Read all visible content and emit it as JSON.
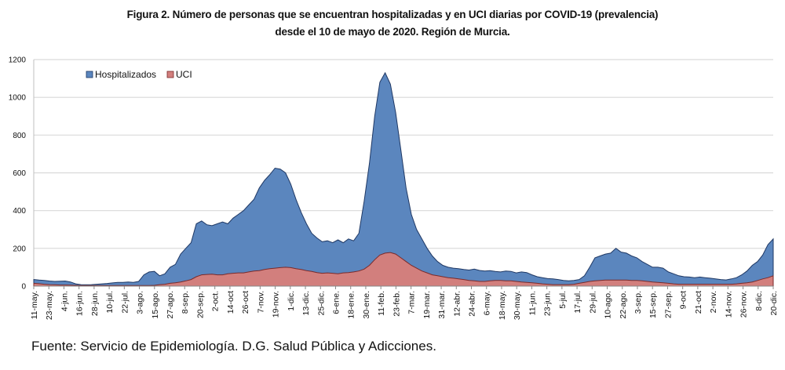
{
  "chart_data": {
    "type": "area",
    "stacked": false,
    "title": "Figura 2. Número de personas que se encuentran hospitalizadas y en UCI diarias por COVID-19 (prevalencia)",
    "subtitle": "desde el 10 de mayo de 2020. Región de Murcia.",
    "xlabel": "",
    "ylabel": "",
    "ylim": [
      0,
      1200
    ],
    "yticks": [
      0,
      200,
      400,
      600,
      800,
      1000,
      1200
    ],
    "grid": true,
    "legend": {
      "placement": "top-left",
      "entries": [
        "Hospitalizados",
        "UCI"
      ]
    },
    "x_tick_labels": [
      "11-may.",
      "23-may.",
      "4-jun.",
      "16-jun.",
      "28-jun.",
      "10-jul.",
      "22-jul.",
      "3-ago.",
      "15-ago.",
      "27-ago.",
      "8-sep.",
      "20-sep.",
      "2-oct.",
      "14-oct",
      "26-oct",
      "7-nov.",
      "19-nov.",
      "1-dic.",
      "13-dic.",
      "25-dic.",
      "6-ene.",
      "18-ene.",
      "30-ene.",
      "11-feb.",
      "23-feb.",
      "7-mar.",
      "19-mar.",
      "31-mar.",
      "12-abr.",
      "24-abr.",
      "6-may.",
      "18-may.",
      "30-may.",
      "11-jun.",
      "23-jun.",
      "5-jul.",
      "17-jul.",
      "29-jul.",
      "10-ago.",
      "22-ago.",
      "3-sep.",
      "15-sep.",
      "27-sep.",
      "9-oct",
      "21-oct",
      "2-nov.",
      "14-nov.",
      "26-nov.",
      "8-dic.",
      "20-dic."
    ],
    "x_step_days": 6,
    "series": [
      {
        "name": "Hospitalizados",
        "color": "#5b86be",
        "line_color": "#1f3864",
        "values": [
          35,
          32,
          30,
          27,
          25,
          26,
          27,
          22,
          12,
          8,
          7,
          8,
          10,
          12,
          14,
          17,
          20,
          20,
          22,
          20,
          25,
          60,
          75,
          78,
          55,
          65,
          100,
          115,
          170,
          200,
          230,
          330,
          345,
          325,
          320,
          330,
          340,
          330,
          360,
          380,
          400,
          430,
          460,
          520,
          560,
          590,
          625,
          620,
          600,
          540,
          460,
          390,
          330,
          280,
          255,
          235,
          240,
          230,
          245,
          230,
          250,
          240,
          280,
          450,
          650,
          900,
          1080,
          1130,
          1070,
          920,
          720,
          520,
          380,
          300,
          250,
          200,
          160,
          130,
          110,
          100,
          95,
          92,
          88,
          85,
          90,
          83,
          80,
          82,
          78,
          75,
          80,
          78,
          70,
          75,
          72,
          60,
          50,
          45,
          40,
          38,
          35,
          30,
          28,
          30,
          35,
          55,
          100,
          150,
          160,
          170,
          175,
          200,
          180,
          175,
          160,
          150,
          130,
          115,
          100,
          100,
          95,
          75,
          65,
          55,
          50,
          48,
          45,
          48,
          45,
          42,
          38,
          35,
          33,
          38,
          45,
          60,
          80,
          110,
          130,
          165,
          220,
          250
        ]
      },
      {
        "name": "UCI",
        "color": "#d27f7d",
        "line_color": "#7a2a2a",
        "values": [
          15,
          13,
          10,
          8,
          7,
          6,
          6,
          5,
          4,
          3,
          3,
          3,
          3,
          3,
          3,
          3,
          3,
          3,
          3,
          3,
          3,
          3,
          3,
          4,
          8,
          10,
          15,
          18,
          22,
          28,
          35,
          50,
          60,
          62,
          63,
          60,
          60,
          65,
          68,
          70,
          70,
          75,
          80,
          82,
          88,
          92,
          95,
          98,
          100,
          98,
          92,
          88,
          82,
          78,
          72,
          68,
          70,
          68,
          65,
          70,
          72,
          75,
          80,
          90,
          110,
          140,
          165,
          175,
          178,
          170,
          150,
          130,
          110,
          95,
          80,
          70,
          60,
          55,
          50,
          45,
          42,
          38,
          35,
          30,
          28,
          25,
          25,
          28,
          30,
          30,
          28,
          28,
          25,
          22,
          20,
          18,
          15,
          12,
          10,
          8,
          8,
          8,
          8,
          10,
          15,
          20,
          25,
          28,
          30,
          32,
          32,
          32,
          32,
          32,
          30,
          30,
          28,
          25,
          22,
          20,
          18,
          15,
          12,
          10,
          10,
          10,
          10,
          10,
          10,
          10,
          10,
          10,
          10,
          10,
          12,
          15,
          18,
          22,
          30,
          38,
          45,
          55
        ]
      }
    ]
  },
  "footer": {
    "source": "Fuente: Servicio de Epidemiología. D.G. Salud Pública y Adicciones."
  }
}
